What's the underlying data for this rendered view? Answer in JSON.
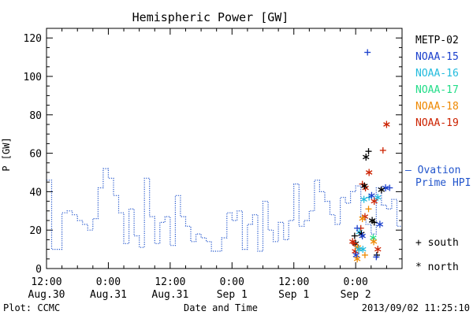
{
  "chart_data": {
    "type": "line",
    "title": "Hemispheric Power [GW]",
    "xlabel": "Date and Time",
    "ylabel": "P [GW]",
    "ylim": [
      0,
      125
    ],
    "yticks": [
      0,
      20,
      40,
      60,
      80,
      100,
      120
    ],
    "xlim": [
      0,
      69
    ],
    "xticks": [
      {
        "x": 0,
        "line1": "12:00",
        "line2": "Aug.30"
      },
      {
        "x": 12,
        "line1": "0:00",
        "line2": "Aug.31"
      },
      {
        "x": 24,
        "line1": "12:00",
        "line2": "Aug.31"
      },
      {
        "x": 36,
        "line1": "0:00",
        "line2": "Sep 1"
      },
      {
        "x": 48,
        "line1": "12:00",
        "line2": "Sep 1"
      },
      {
        "x": 60,
        "line1": "0:00",
        "line2": "Sep 2"
      }
    ],
    "x_unit": "hours since 12:00 Aug.30",
    "footer_left": "Plot: CCMC",
    "footer_right": "2013/09/02 11:25:10",
    "ovation": {
      "legend_line1": "— Ovation",
      "legend_line2": "Prime HPI",
      "color": "#2255cc",
      "x": [
        0,
        1,
        1,
        3,
        3,
        4,
        4,
        5,
        5,
        6,
        6,
        7,
        7,
        8,
        8,
        9,
        9,
        10,
        10,
        11,
        11,
        12,
        12,
        13,
        13,
        14,
        14,
        15,
        15,
        16,
        16,
        17,
        17,
        18,
        18,
        19,
        19,
        20,
        20,
        21,
        21,
        22,
        22,
        23,
        23,
        24,
        24,
        25,
        25,
        26,
        26,
        27,
        27,
        28,
        28,
        29,
        29,
        30,
        30,
        31,
        31,
        32,
        32,
        33,
        33,
        34,
        34,
        35,
        35,
        36,
        36,
        37,
        37,
        38,
        38,
        39,
        39,
        40,
        40,
        41,
        41,
        42,
        42,
        43,
        43,
        44,
        44,
        45,
        45,
        46,
        46,
        47,
        47,
        48,
        48,
        49,
        49,
        50,
        50,
        51,
        51,
        52,
        52,
        53,
        53,
        54,
        54,
        55,
        55,
        56,
        56,
        57,
        57,
        58,
        58,
        59,
        59,
        60,
        60,
        61,
        61,
        62,
        62,
        63,
        63,
        64,
        64,
        65,
        65,
        66,
        66,
        67,
        67,
        68,
        68,
        69
      ],
      "y": [
        46,
        46,
        10,
        10,
        29,
        29,
        30,
        30,
        28,
        28,
        25,
        25,
        23,
        23,
        20,
        20,
        26,
        26,
        42,
        42,
        52,
        52,
        47,
        47,
        38,
        38,
        29,
        29,
        13,
        13,
        31,
        31,
        17,
        17,
        11,
        11,
        47,
        47,
        27,
        27,
        13,
        13,
        24,
        24,
        27,
        27,
        12,
        12,
        38,
        38,
        27,
        27,
        22,
        22,
        14,
        14,
        18,
        18,
        16,
        16,
        14,
        14,
        9,
        9,
        9,
        9,
        16,
        16,
        29,
        29,
        25,
        25,
        30,
        30,
        10,
        10,
        23,
        23,
        28,
        28,
        9,
        9,
        35,
        35,
        20,
        20,
        14,
        14,
        24,
        24,
        15,
        15,
        25,
        25,
        44,
        44,
        22,
        22,
        25,
        25,
        30,
        30,
        46,
        46,
        40,
        40,
        35,
        35,
        28,
        28,
        23,
        23,
        37,
        37,
        34,
        34,
        40,
        40,
        43,
        43,
        27,
        27,
        23,
        23,
        18,
        18,
        42,
        42,
        33,
        33,
        31,
        31,
        36,
        36,
        22,
        22
      ]
    },
    "satellites": [
      {
        "name": "METP-02",
        "color": "#000000"
      },
      {
        "name": "NOAA-15",
        "color": "#1a3fcc"
      },
      {
        "name": "NOAA-16",
        "color": "#22bbdd"
      },
      {
        "name": "NOAA-17",
        "color": "#22dd88"
      },
      {
        "name": "NOAA-18",
        "color": "#ee8800"
      },
      {
        "name": "NOAA-19",
        "color": "#cc2200"
      }
    ],
    "marker_legend": {
      "south": "+ south",
      "north": "* north"
    },
    "points": [
      {
        "x": 62.3,
        "y": 112.5,
        "sat": "NOAA-15",
        "hemi": "south"
      },
      {
        "x": 66.0,
        "y": 75,
        "sat": "NOAA-19",
        "hemi": "north"
      },
      {
        "x": 65.3,
        "y": 61.5,
        "sat": "NOAA-19",
        "hemi": "south"
      },
      {
        "x": 62.5,
        "y": 61,
        "sat": "METP-02",
        "hemi": "south"
      },
      {
        "x": 62.0,
        "y": 58,
        "sat": "METP-02",
        "hemi": "north"
      },
      {
        "x": 62.6,
        "y": 50,
        "sat": "NOAA-19",
        "hemi": "north"
      },
      {
        "x": 61.3,
        "y": 44,
        "sat": "NOAA-19",
        "hemi": "south"
      },
      {
        "x": 61.9,
        "y": 42,
        "sat": "NOAA-19",
        "hemi": "north"
      },
      {
        "x": 61.7,
        "y": 43,
        "sat": "METP-02",
        "hemi": "north"
      },
      {
        "x": 65.8,
        "y": 42,
        "sat": "NOAA-15",
        "hemi": "north"
      },
      {
        "x": 66.6,
        "y": 42,
        "sat": "NOAA-15",
        "hemi": "south"
      },
      {
        "x": 65.0,
        "y": 41,
        "sat": "METP-02",
        "hemi": "north"
      },
      {
        "x": 62.6,
        "y": 37,
        "sat": "NOAA-16",
        "hemi": "south"
      },
      {
        "x": 63.1,
        "y": 38,
        "sat": "NOAA-15",
        "hemi": "north"
      },
      {
        "x": 64.3,
        "y": 37,
        "sat": "NOAA-16",
        "hemi": "north"
      },
      {
        "x": 61.6,
        "y": 36,
        "sat": "NOAA-16",
        "hemi": "north"
      },
      {
        "x": 63.6,
        "y": 35,
        "sat": "NOAA-19",
        "hemi": "north"
      },
      {
        "x": 61.8,
        "y": 27,
        "sat": "NOAA-19",
        "hemi": "north"
      },
      {
        "x": 61.3,
        "y": 26,
        "sat": "NOAA-18",
        "hemi": "north"
      },
      {
        "x": 63.2,
        "y": 25,
        "sat": "METP-02",
        "hemi": "north"
      },
      {
        "x": 63.6,
        "y": 24,
        "sat": "METP-02",
        "hemi": "south"
      },
      {
        "x": 64.7,
        "y": 23,
        "sat": "NOAA-15",
        "hemi": "north"
      },
      {
        "x": 61.0,
        "y": 21,
        "sat": "NOAA-19",
        "hemi": "south"
      },
      {
        "x": 59.8,
        "y": 17,
        "sat": "METP-02",
        "hemi": "south"
      },
      {
        "x": 60.7,
        "y": 19,
        "sat": "NOAA-16",
        "hemi": "north"
      },
      {
        "x": 61.1,
        "y": 18,
        "sat": "METP-02",
        "hemi": "north"
      },
      {
        "x": 61.3,
        "y": 17,
        "sat": "NOAA-15",
        "hemi": "north"
      },
      {
        "x": 60.3,
        "y": 21,
        "sat": "NOAA-15",
        "hemi": "south"
      },
      {
        "x": 63.4,
        "y": 16,
        "sat": "NOAA-17",
        "hemi": "north"
      },
      {
        "x": 63.5,
        "y": 14,
        "sat": "NOAA-18",
        "hemi": "north"
      },
      {
        "x": 60.0,
        "y": 13,
        "sat": "METP-02",
        "hemi": "north"
      },
      {
        "x": 59.7,
        "y": 13,
        "sat": "NOAA-19",
        "hemi": "south"
      },
      {
        "x": 59.9,
        "y": 9,
        "sat": "NOAA-19",
        "hemi": "north"
      },
      {
        "x": 59.4,
        "y": 14,
        "sat": "NOAA-19",
        "hemi": "north"
      },
      {
        "x": 60.4,
        "y": 11,
        "sat": "NOAA-18",
        "hemi": "north"
      },
      {
        "x": 60.6,
        "y": 10,
        "sat": "NOAA-16",
        "hemi": "north"
      },
      {
        "x": 60.1,
        "y": 7,
        "sat": "NOAA-15",
        "hemi": "north"
      },
      {
        "x": 60.3,
        "y": 5,
        "sat": "NOAA-18",
        "hemi": "north"
      },
      {
        "x": 61.4,
        "y": 10,
        "sat": "NOAA-16",
        "hemi": "north"
      },
      {
        "x": 61.8,
        "y": 7,
        "sat": "NOAA-18",
        "hemi": "south"
      },
      {
        "x": 64.3,
        "y": 10,
        "sat": "NOAA-19",
        "hemi": "north"
      },
      {
        "x": 64.1,
        "y": 7,
        "sat": "METP-02",
        "hemi": "south"
      },
      {
        "x": 64.0,
        "y": 6,
        "sat": "NOAA-15",
        "hemi": "south"
      },
      {
        "x": 62.5,
        "y": 31,
        "sat": "NOAA-18",
        "hemi": "south"
      }
    ]
  }
}
